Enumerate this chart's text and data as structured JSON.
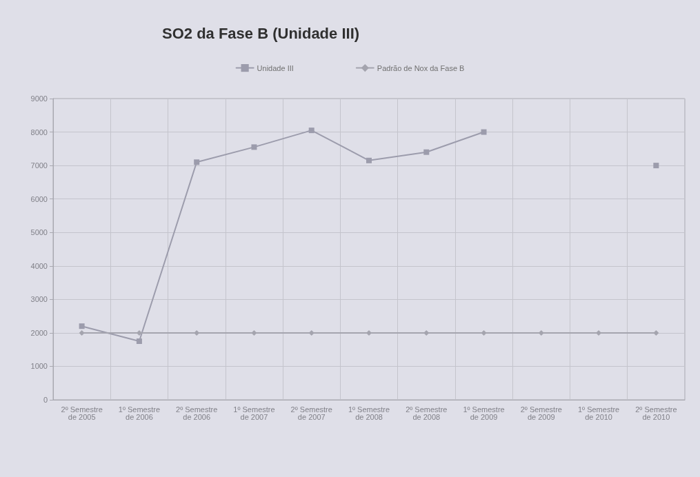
{
  "chart_data": {
    "type": "line",
    "title": "SO2 da Fase B (Unidade III)",
    "categories": [
      "2º Semestre de 2005",
      "1º Semestre de 2006",
      "2º Semestre de 2006",
      "1º Semestre de 2007",
      "2º Semestre de 2007",
      "1º Semestre de 2008",
      "2º Semestre de 2008",
      "1º Semestre de 2009",
      "2º Semestre de 2009",
      "1º Semestre de 2010",
      "2º Semestre de 2010"
    ],
    "series": [
      {
        "name": "Unidade III",
        "color": "#9c9cac",
        "marker": "square",
        "values": [
          2200,
          1750,
          7100,
          7550,
          8050,
          7150,
          7400,
          8000,
          null,
          null,
          7000
        ]
      },
      {
        "name": "Padrão de Nox da Fase B",
        "color": "#a4a4ae",
        "marker": "diamond",
        "values": [
          2000,
          2000,
          2000,
          2000,
          2000,
          2000,
          2000,
          2000,
          2000,
          2000,
          2000
        ]
      }
    ],
    "ylim": [
      0,
      9000
    ],
    "yticks": [
      0,
      1000,
      2000,
      3000,
      4000,
      5000,
      6000,
      7000,
      8000,
      9000
    ],
    "grid": true,
    "legend": "top",
    "line_style": "solid"
  }
}
